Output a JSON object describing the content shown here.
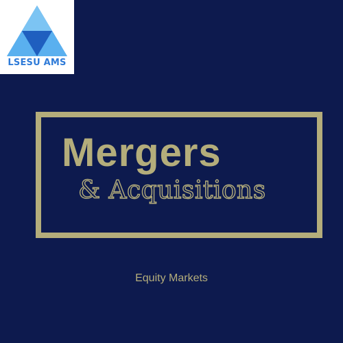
{
  "logo": {
    "text": "LSESU AMS",
    "icon": "triangle-logo-icon",
    "colors": {
      "light_blue": "#5ab0ef",
      "mid_blue": "#3a8ee0",
      "dark_blue": "#1f5fbf"
    }
  },
  "main": {
    "title": "Mergers",
    "subtitle": "& Acquisitions",
    "tagline": "Equity Markets"
  },
  "colors": {
    "background": "#0d1a4e",
    "accent": "#b4ad7b"
  }
}
